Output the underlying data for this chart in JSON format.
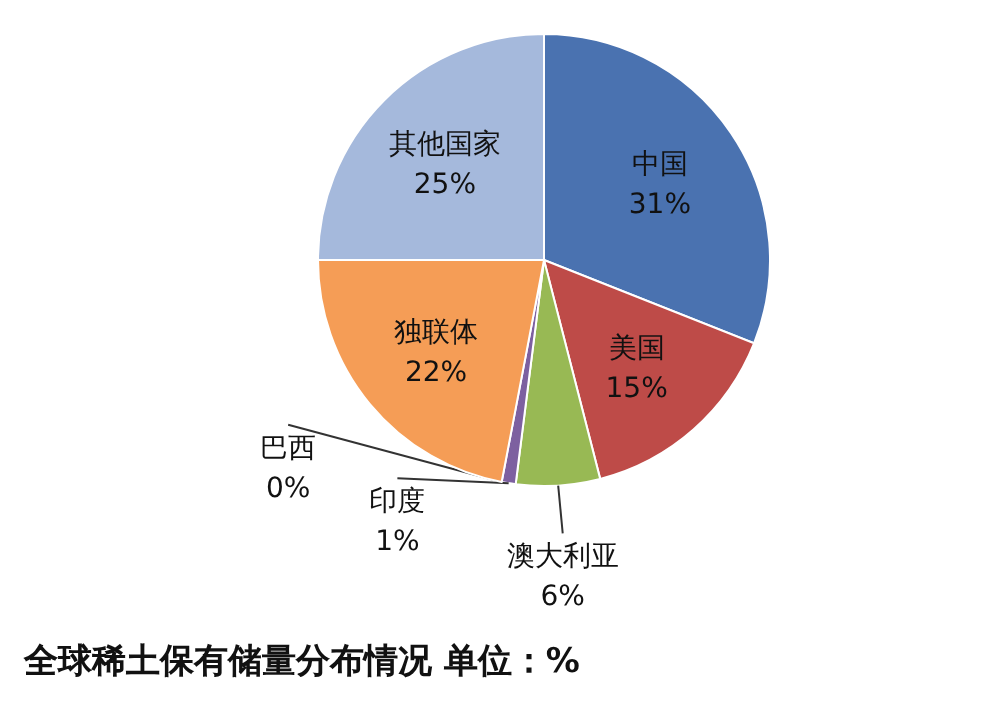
{
  "chart_data": {
    "type": "pie",
    "title": "全球稀土保有储量分布情况 单位：%",
    "categories": [
      "中国",
      "美国",
      "澳大利亚",
      "印度",
      "巴西",
      "独联体",
      "其他国家"
    ],
    "values": [
      31,
      15,
      6,
      1,
      0,
      22,
      25
    ],
    "value_labels": [
      "31%",
      "15%",
      "6%",
      "1%",
      "0%",
      "22%",
      "25%"
    ],
    "colors": [
      "#4a72b0",
      "#be4b48",
      "#98b954",
      "#7d60a0",
      null,
      "#f59d56",
      "#a5b9dc"
    ]
  }
}
